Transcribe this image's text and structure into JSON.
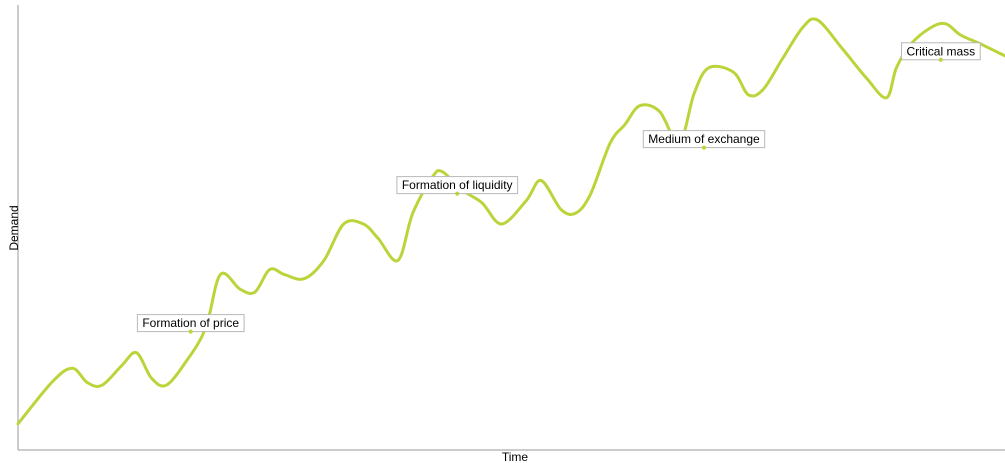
{
  "chart_data": {
    "type": "line",
    "xlabel": "Time",
    "ylabel": "Demand",
    "grid": false,
    "legend": "none",
    "xlim": [
      0,
      100
    ],
    "ylim": [
      0,
      100
    ],
    "series": [
      {
        "color": "#b9d53a",
        "x": [
          0,
          3.5,
          5.5,
          7,
          8.5,
          10.5,
          12,
          13.5,
          15,
          17,
          19,
          20.5,
          22.5,
          24,
          25.5,
          27,
          29,
          31,
          33,
          35,
          36.5,
          38.5,
          40,
          42,
          43,
          45,
          47,
          49,
          51.5,
          53,
          55,
          56.5,
          58,
          60,
          61.5,
          63,
          65,
          67,
          68.5,
          70,
          72.5,
          74,
          75.5,
          77.5,
          79.5,
          81,
          83.5,
          86,
          88,
          89,
          90.5,
          92.5,
          94,
          95.5,
          97.5,
          100
        ],
        "y": [
          3.4,
          13.5,
          16.7,
          13.3,
          12.6,
          17.3,
          20.4,
          14.4,
          12.6,
          18.2,
          26.2,
          39.1,
          35.6,
          34.9,
          40.3,
          39.1,
          38.1,
          42.5,
          51.2,
          51.2,
          47.7,
          42.5,
          53.8,
          62.5,
          63.7,
          59.3,
          56.3,
          51.2,
          56.8,
          61.6,
          54.7,
          53.8,
          58.3,
          70.6,
          75.0,
          79.5,
          78.1,
          70.6,
          82.4,
          88.6,
          87.5,
          82.1,
          83.4,
          90.9,
          98.2,
          100.0,
          93.2,
          86.0,
          81.4,
          88.6,
          94.3,
          98.2,
          99.1,
          96.4,
          94.3,
          91.4
        ]
      }
    ],
    "annotations": [
      {
        "text": "Formation of price",
        "x": 17.5,
        "y": 27.5
      },
      {
        "text": "Formation of liquidity",
        "x": 44.5,
        "y": 60.5
      },
      {
        "text": "Medium of exchange",
        "x": 69.5,
        "y": 71.5
      },
      {
        "text": "Critical mass",
        "x": 93.5,
        "y": 92.5
      }
    ]
  }
}
